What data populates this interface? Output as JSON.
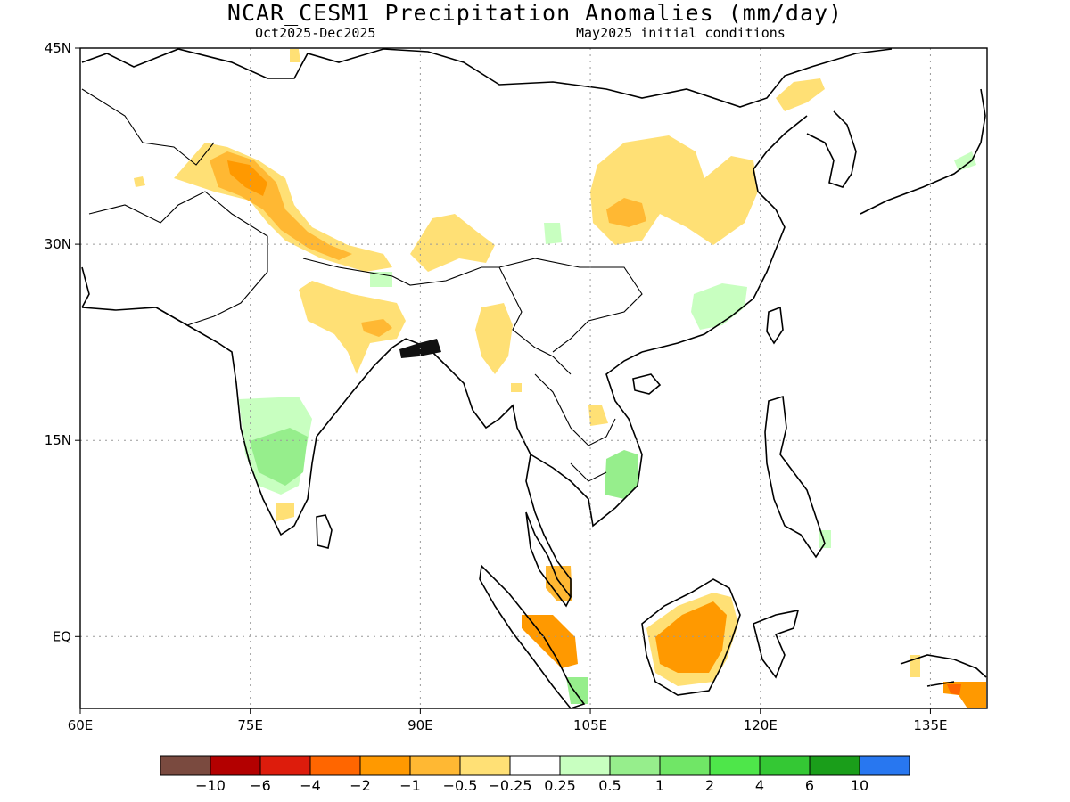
{
  "title": "NCAR_CESM1 Precipitation Anomalies (mm/day)",
  "subtitle_left": "Oct2025-Dec2025",
  "subtitle_right": "May2025 initial conditions",
  "map": {
    "lon_range": [
      60,
      140
    ],
    "lat_range": [
      -5.5,
      45
    ],
    "lon_ticks": [
      "60E",
      "75E",
      "90E",
      "105E",
      "120E",
      "135E"
    ],
    "lat_ticks": [
      "45N",
      "30N",
      "15N",
      "EQ"
    ],
    "grid": "dotted"
  },
  "legend": {
    "colors": [
      "#7a4a3f",
      "#b30000",
      "#dd1c0c",
      "#ff6600",
      "#ff9900",
      "#ffb833",
      "#ffe075",
      "#ffffff",
      "#c8ffc0",
      "#96ee8c",
      "#70e666",
      "#4ee64a",
      "#34c834",
      "#1a9e1a",
      "#2877f0"
    ],
    "labels": [
      "-10",
      "-6",
      "-4",
      "-2",
      "-1",
      "-0.5",
      "-0.25",
      "0.25",
      "0.5",
      "1",
      "2",
      "4",
      "6",
      "10"
    ]
  },
  "anomaly_regions": [
    {
      "name": "western-himalaya",
      "level": "-1",
      "color": "#ffb833"
    },
    {
      "name": "south-china-nw",
      "level": "-0.5",
      "color": "#ffe075"
    },
    {
      "name": "borneo",
      "level": "-1",
      "color": "#ff9900"
    },
    {
      "name": "sumatra",
      "level": "-1",
      "color": "#ff9900"
    },
    {
      "name": "south-india",
      "level": "0.5",
      "color": "#96ee8c"
    },
    {
      "name": "vietnam-coast",
      "level": "0.5",
      "color": "#96ee8c"
    },
    {
      "name": "southeast-china",
      "level": "0.25",
      "color": "#c8ffc0"
    }
  ]
}
